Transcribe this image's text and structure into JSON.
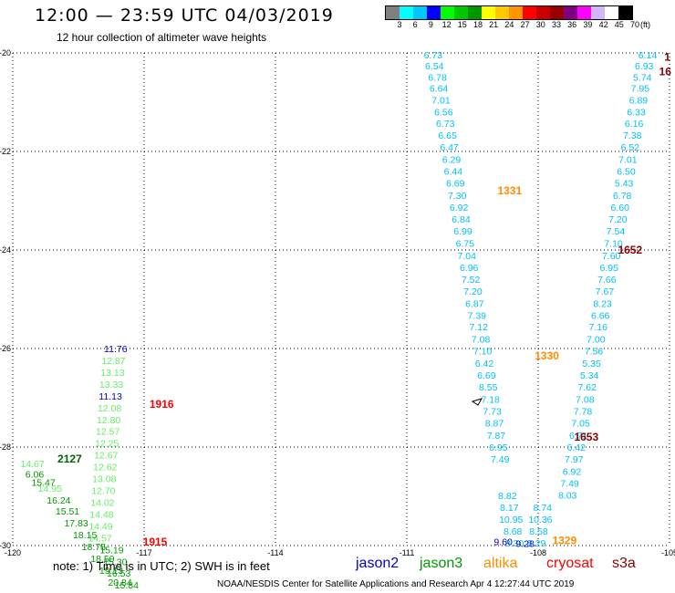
{
  "header": {
    "title": "12:00 — 23:59 UTC 04/03/2019",
    "subtitle": "12 hour collection of altimeter wave heights"
  },
  "colorbar": {
    "colors": [
      "#808080",
      "#00ffff",
      "#00c8ff",
      "#0000ff",
      "#00ff00",
      "#00c800",
      "#009600",
      "#ffff00",
      "#ffc800",
      "#ff9600",
      "#ff0000",
      "#c80000",
      "#960000",
      "#800080",
      "#ff00ff",
      "#d2b4ff",
      "#ffffff",
      "#000000"
    ],
    "labels": [
      "3",
      "6",
      "9",
      "12",
      "15",
      "18",
      "21",
      "24",
      "27",
      "30",
      "33",
      "36",
      "39",
      "42",
      "45",
      "70"
    ],
    "unit": "(ft)"
  },
  "map": {
    "lat_labels": [
      "-20",
      "-22",
      "-24",
      "-26",
      "-28",
      "-30"
    ],
    "lon_labels": [
      "-120",
      "-117",
      "-114",
      "-111",
      "-108",
      "-105"
    ],
    "lat_range": [
      -30,
      -20
    ],
    "lon_range": [
      -120,
      -105
    ],
    "grid": true
  },
  "tracks": [
    {
      "color": "#00bfff",
      "points": [
        {
          "lat": -20.04,
          "lon": -110.4,
          "v": "6.73"
        },
        {
          "lat": -20.26,
          "lon": -110.37,
          "v": "6.54"
        },
        {
          "lat": -20.49,
          "lon": -110.3,
          "v": "6.78"
        },
        {
          "lat": -20.71,
          "lon": -110.27,
          "v": "6.64"
        },
        {
          "lat": -20.95,
          "lon": -110.22,
          "v": "7.01"
        },
        {
          "lat": -21.19,
          "lon": -110.16,
          "v": "6.56"
        },
        {
          "lat": -21.43,
          "lon": -110.12,
          "v": "6.73"
        },
        {
          "lat": -21.67,
          "lon": -110.07,
          "v": "6.65"
        },
        {
          "lat": -21.91,
          "lon": -110.03,
          "v": "6.47"
        },
        {
          "lat": -22.16,
          "lon": -109.98,
          "v": "6.29"
        },
        {
          "lat": -22.4,
          "lon": -109.94,
          "v": "6.44"
        },
        {
          "lat": -22.64,
          "lon": -109.89,
          "v": "6.69"
        },
        {
          "lat": -22.89,
          "lon": -109.85,
          "v": "7.30"
        },
        {
          "lat": -23.13,
          "lon": -109.81,
          "v": "6.92"
        },
        {
          "lat": -23.37,
          "lon": -109.76,
          "v": "6.84"
        },
        {
          "lat": -23.61,
          "lon": -109.72,
          "v": "6.99"
        },
        {
          "lat": -23.86,
          "lon": -109.67,
          "v": "6.75"
        },
        {
          "lat": -24.11,
          "lon": -109.63,
          "v": "7.04"
        },
        {
          "lat": -24.35,
          "lon": -109.58,
          "v": "6.96"
        },
        {
          "lat": -24.59,
          "lon": -109.54,
          "v": "7.52"
        },
        {
          "lat": -24.83,
          "lon": -109.49,
          "v": "7.20"
        },
        {
          "lat": -25.08,
          "lon": -109.45,
          "v": "6.87"
        },
        {
          "lat": -25.32,
          "lon": -109.4,
          "v": "7.39"
        },
        {
          "lat": -25.56,
          "lon": -109.36,
          "v": "7.12"
        },
        {
          "lat": -25.81,
          "lon": -109.31,
          "v": "7.08"
        },
        {
          "lat": -26.05,
          "lon": -109.27,
          "v": "7.10"
        },
        {
          "lat": -26.3,
          "lon": -109.23,
          "v": "6.42"
        },
        {
          "lat": -26.54,
          "lon": -109.18,
          "v": "6.69"
        },
        {
          "lat": -26.78,
          "lon": -109.14,
          "v": "8.55"
        },
        {
          "lat": -27.03,
          "lon": -109.09,
          "v": "7.18"
        },
        {
          "lat": -27.27,
          "lon": -109.05,
          "v": "7.73"
        },
        {
          "lat": -27.51,
          "lon": -109.0,
          "v": "8.87"
        },
        {
          "lat": -27.76,
          "lon": -108.96,
          "v": "7.87"
        },
        {
          "lat": -28.0,
          "lon": -108.91,
          "v": "6.95"
        },
        {
          "lat": -28.24,
          "lon": -108.87,
          "v": "7.49"
        }
      ]
    },
    {
      "color": "#00bfff",
      "points": [
        {
          "lat": -20.04,
          "lon": -105.5,
          "v": "6.14"
        },
        {
          "lat": -20.26,
          "lon": -105.58,
          "v": "6.93"
        },
        {
          "lat": -20.49,
          "lon": -105.62,
          "v": "5.74"
        },
        {
          "lat": -20.71,
          "lon": -105.67,
          "v": "7.95"
        },
        {
          "lat": -20.95,
          "lon": -105.71,
          "v": "6.89"
        },
        {
          "lat": -21.19,
          "lon": -105.76,
          "v": "6.33"
        },
        {
          "lat": -21.43,
          "lon": -105.81,
          "v": "6.16"
        },
        {
          "lat": -21.67,
          "lon": -105.85,
          "v": "7.38"
        },
        {
          "lat": -21.91,
          "lon": -105.9,
          "v": "6.52"
        },
        {
          "lat": -22.16,
          "lon": -105.95,
          "v": "7.01"
        },
        {
          "lat": -22.4,
          "lon": -105.99,
          "v": "6.50"
        },
        {
          "lat": -22.64,
          "lon": -106.04,
          "v": "5.43"
        },
        {
          "lat": -22.89,
          "lon": -106.08,
          "v": "6.78"
        },
        {
          "lat": -23.13,
          "lon": -106.13,
          "v": "6.60"
        },
        {
          "lat": -23.37,
          "lon": -106.18,
          "v": "7.20"
        },
        {
          "lat": -23.61,
          "lon": -106.23,
          "v": "7.54"
        },
        {
          "lat": -23.86,
          "lon": -106.28,
          "v": "7.10"
        },
        {
          "lat": -24.11,
          "lon": -106.33,
          "v": "7.60"
        },
        {
          "lat": -24.35,
          "lon": -106.38,
          "v": "6.95"
        },
        {
          "lat": -24.59,
          "lon": -106.43,
          "v": "7.66"
        },
        {
          "lat": -24.83,
          "lon": -106.48,
          "v": "7.67"
        },
        {
          "lat": -25.08,
          "lon": -106.53,
          "v": "8.23"
        },
        {
          "lat": -25.32,
          "lon": -106.58,
          "v": "6.66"
        },
        {
          "lat": -25.56,
          "lon": -106.63,
          "v": "7.16"
        },
        {
          "lat": -25.81,
          "lon": -106.68,
          "v": "7.00"
        },
        {
          "lat": -26.05,
          "lon": -106.73,
          "v": "7.56"
        },
        {
          "lat": -26.3,
          "lon": -106.78,
          "v": "5.35"
        },
        {
          "lat": -26.54,
          "lon": -106.83,
          "v": "5.34"
        },
        {
          "lat": -26.78,
          "lon": -106.88,
          "v": "7.62"
        },
        {
          "lat": -27.03,
          "lon": -106.93,
          "v": "7.08"
        },
        {
          "lat": -27.27,
          "lon": -106.98,
          "v": "7.78"
        },
        {
          "lat": -27.51,
          "lon": -107.03,
          "v": "7.05"
        },
        {
          "lat": -27.76,
          "lon": -107.08,
          "v": "6.71"
        },
        {
          "lat": -28.0,
          "lon": -107.13,
          "v": "6.42"
        },
        {
          "lat": -28.24,
          "lon": -107.18,
          "v": "7.97"
        },
        {
          "lat": -28.49,
          "lon": -107.23,
          "v": "6.92"
        },
        {
          "lat": -28.73,
          "lon": -107.28,
          "v": "7.49"
        },
        {
          "lat": -28.97,
          "lon": -107.33,
          "v": "8.03"
        }
      ]
    },
    {
      "color": "#00bfff",
      "points": [
        {
          "lat": -28.98,
          "lon": -108.7,
          "v": "8.82"
        },
        {
          "lat": -29.22,
          "lon": -108.66,
          "v": "8.17"
        },
        {
          "lat": -29.46,
          "lon": -108.62,
          "v": "10.95"
        },
        {
          "lat": -29.7,
          "lon": -108.58,
          "v": "8.68"
        },
        {
          "lat": -29.94,
          "lon": -108.54,
          "v": "8.30"
        },
        {
          "lat": -29.22,
          "lon": -107.9,
          "v": "8.74"
        },
        {
          "lat": -29.46,
          "lon": -107.95,
          "v": "10.36"
        },
        {
          "lat": -29.7,
          "lon": -107.99,
          "v": "8.58"
        },
        {
          "lat": -29.94,
          "lon": -108.04,
          "v": "8.29"
        }
      ]
    },
    {
      "color": "#0000cd",
      "points": [
        {
          "lat": -29.92,
          "lon": -108.8,
          "v": "9.60"
        },
        {
          "lat": -29.95,
          "lon": -108.3,
          "v": "9.28"
        }
      ]
    },
    {
      "color": "#66ee66",
      "points": [
        {
          "lat": -26.24,
          "lon": -117.7,
          "v": "12.87"
        },
        {
          "lat": -26.48,
          "lon": -117.72,
          "v": "13.13"
        },
        {
          "lat": -26.72,
          "lon": -117.75,
          "v": "13.33"
        },
        {
          "lat": -27.2,
          "lon": -117.79,
          "v": "12.08"
        },
        {
          "lat": -27.44,
          "lon": -117.81,
          "v": "12.80"
        },
        {
          "lat": -27.68,
          "lon": -117.83,
          "v": "12.57"
        },
        {
          "lat": -27.92,
          "lon": -117.85,
          "v": "12.25"
        },
        {
          "lat": -28.16,
          "lon": -117.87,
          "v": "12.67"
        },
        {
          "lat": -28.4,
          "lon": -117.89,
          "v": "12.62"
        },
        {
          "lat": -28.64,
          "lon": -117.91,
          "v": "13.08"
        },
        {
          "lat": -28.88,
          "lon": -117.93,
          "v": "12.70"
        },
        {
          "lat": -29.12,
          "lon": -117.95,
          "v": "14.02"
        },
        {
          "lat": -29.36,
          "lon": -117.97,
          "v": "14.48"
        },
        {
          "lat": -29.6,
          "lon": -117.99,
          "v": "14.49"
        },
        {
          "lat": -29.84,
          "lon": -118.01,
          "v": "14.57"
        },
        {
          "lat": -28.33,
          "lon": -119.55,
          "v": "14.67"
        },
        {
          "lat": -28.83,
          "lon": -119.15,
          "v": "14.95"
        }
      ]
    },
    {
      "color": "#0000cd",
      "points": [
        {
          "lat": -26.0,
          "lon": -117.65,
          "v": "11.76"
        },
        {
          "lat": -26.96,
          "lon": -117.77,
          "v": "11.13"
        }
      ]
    },
    {
      "color": "#009900",
      "points": [
        {
          "lat": -28.55,
          "lon": -119.5,
          "v": "6.06"
        },
        {
          "lat": -28.71,
          "lon": -119.3,
          "v": "15.47"
        },
        {
          "lat": -29.07,
          "lon": -118.95,
          "v": "16.24"
        },
        {
          "lat": -29.3,
          "lon": -118.75,
          "v": "15.51"
        },
        {
          "lat": -29.54,
          "lon": -118.55,
          "v": "17.83"
        },
        {
          "lat": -29.78,
          "lon": -118.35,
          "v": "18.15"
        },
        {
          "lat": -30.02,
          "lon": -118.15,
          "v": "18.75"
        },
        {
          "lat": -30.26,
          "lon": -117.95,
          "v": "18.50"
        },
        {
          "lat": -30.5,
          "lon": -117.75,
          "v": "19.13"
        },
        {
          "lat": -30.74,
          "lon": -117.55,
          "v": "20.84"
        },
        {
          "lat": -30.08,
          "lon": -117.74,
          "v": "15.19"
        },
        {
          "lat": -30.32,
          "lon": -117.66,
          "v": "15.30"
        },
        {
          "lat": -30.56,
          "lon": -117.58,
          "v": "16.53"
        },
        {
          "lat": -30.8,
          "lon": -117.4,
          "v": "15.84"
        }
      ]
    }
  ],
  "times": [
    {
      "lat": -22.8,
      "lon": -108.65,
      "t": "1331",
      "color": "#ff8c00"
    },
    {
      "lat": -26.15,
      "lon": -107.8,
      "t": "1330",
      "color": "#ff8c00"
    },
    {
      "lat": -29.9,
      "lon": -107.4,
      "t": "1329",
      "color": "#ff8c00"
    },
    {
      "lat": -24.0,
      "lon": -105.9,
      "t": "1652",
      "color": "#8b0000"
    },
    {
      "lat": -27.8,
      "lon": -106.9,
      "t": "1653",
      "color": "#8b0000"
    },
    {
      "lat": -20.08,
      "lon": -105.05,
      "t": "1",
      "color": "#8b0000"
    },
    {
      "lat": -20.38,
      "lon": -105.1,
      "t": "16",
      "color": "#8b0000"
    },
    {
      "lat": -27.13,
      "lon": -116.6,
      "t": "1916",
      "color": "#ff0000"
    },
    {
      "lat": -29.93,
      "lon": -116.75,
      "t": "1915",
      "color": "#ff0000"
    },
    {
      "lat": -28.24,
      "lon": -118.7,
      "t": "2127",
      "color": "#006400"
    }
  ],
  "legend": [
    {
      "label": "jason2",
      "color": "#0000cd"
    },
    {
      "label": "jason3",
      "color": "#009900"
    },
    {
      "label": "altika",
      "color": "#ff8c00"
    },
    {
      "label": "cryosat",
      "color": "#ff0000"
    },
    {
      "label": "s3a",
      "color": "#8b0000"
    }
  ],
  "note": "note:  1) Time is in UTC;  2) SWH is in feet",
  "credit": "NOAA/NESDIS Center for Satellite Applications and Research    Apr  4 12:27:44 UTC 2019"
}
